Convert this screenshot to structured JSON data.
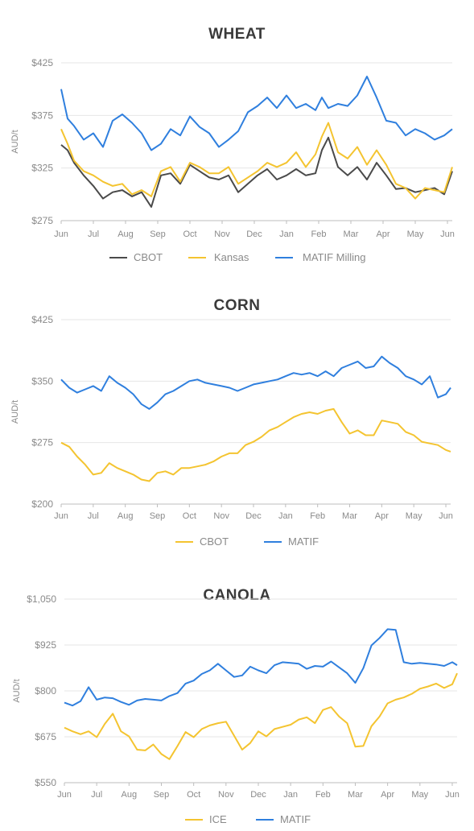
{
  "chart_data": [
    {
      "type": "line",
      "title": "WHEAT",
      "ylabel": "AUD/t",
      "ylim": [
        275,
        425
      ],
      "yticks": [
        275,
        325,
        375,
        425
      ],
      "ytick_labels": [
        "$275",
        "$325",
        "$375",
        "$425"
      ],
      "months": [
        "Jun",
        "Jul",
        "Aug",
        "Sep",
        "Oct",
        "Nov",
        "Dec",
        "Jan",
        "Feb",
        "Mar",
        "Apr",
        "May",
        "Jun"
      ],
      "grid": true,
      "legend": "bottom",
      "series": [
        {
          "name": "CBOT",
          "color": "#4a4a4a",
          "x": [
            0,
            0.2,
            0.4,
            0.7,
            1,
            1.3,
            1.6,
            1.9,
            2.2,
            2.5,
            2.8,
            3.1,
            3.4,
            3.7,
            4,
            4.3,
            4.6,
            4.9,
            5.2,
            5.5,
            5.8,
            6.1,
            6.4,
            6.7,
            7,
            7.3,
            7.6,
            7.9,
            8.1,
            8.3,
            8.6,
            8.9,
            9.2,
            9.5,
            9.8,
            10.1,
            10.4,
            10.7,
            11,
            11.3,
            11.6,
            11.9,
            12.15
          ],
          "values": [
            347,
            342,
            330,
            318,
            308,
            296,
            302,
            304,
            298,
            302,
            288,
            318,
            320,
            310,
            328,
            322,
            316,
            314,
            318,
            302,
            310,
            318,
            324,
            314,
            318,
            324,
            318,
            320,
            342,
            354,
            326,
            318,
            326,
            314,
            330,
            318,
            305,
            306,
            302,
            304,
            306,
            300,
            322
          ]
        },
        {
          "name": "Kansas",
          "color": "#f4c430",
          "x": [
            0,
            0.2,
            0.4,
            0.7,
            1,
            1.3,
            1.6,
            1.9,
            2.2,
            2.5,
            2.8,
            3.1,
            3.4,
            3.7,
            4,
            4.3,
            4.6,
            4.9,
            5.2,
            5.5,
            5.8,
            6.1,
            6.4,
            6.7,
            7,
            7.3,
            7.6,
            7.9,
            8.1,
            8.3,
            8.6,
            8.9,
            9.2,
            9.5,
            9.8,
            10.1,
            10.4,
            10.7,
            11,
            11.3,
            11.6,
            11.9,
            12.15
          ],
          "values": [
            362,
            348,
            332,
            322,
            318,
            312,
            308,
            310,
            300,
            304,
            298,
            322,
            326,
            312,
            330,
            326,
            320,
            320,
            326,
            310,
            316,
            322,
            330,
            326,
            330,
            340,
            326,
            338,
            355,
            368,
            340,
            334,
            345,
            328,
            342,
            328,
            310,
            306,
            296,
            306,
            304,
            302,
            326
          ]
        },
        {
          "name": "MATIF Milling",
          "color": "#2f7fde",
          "x": [
            0,
            0.2,
            0.4,
            0.7,
            1,
            1.3,
            1.6,
            1.9,
            2.2,
            2.5,
            2.8,
            3.1,
            3.4,
            3.7,
            4,
            4.3,
            4.6,
            4.9,
            5.2,
            5.5,
            5.8,
            6.1,
            6.4,
            6.7,
            7,
            7.3,
            7.6,
            7.9,
            8.1,
            8.3,
            8.6,
            8.9,
            9.2,
            9.5,
            9.8,
            10.1,
            10.4,
            10.7,
            11,
            11.3,
            11.6,
            11.9,
            12.15
          ],
          "values": [
            400,
            372,
            365,
            352,
            358,
            345,
            370,
            376,
            368,
            358,
            342,
            348,
            362,
            356,
            374,
            364,
            358,
            345,
            352,
            360,
            378,
            384,
            392,
            382,
            394,
            382,
            386,
            380,
            392,
            382,
            386,
            384,
            394,
            412,
            392,
            370,
            368,
            356,
            362,
            358,
            352,
            356,
            362
          ]
        }
      ]
    },
    {
      "type": "line",
      "title": "CORN",
      "ylabel": "AUD/t",
      "ylim": [
        200,
        425
      ],
      "yticks": [
        200,
        275,
        350,
        425
      ],
      "ytick_labels": [
        "$200",
        "$275",
        "$350",
        "$425"
      ],
      "months": [
        "Jun",
        "Jul",
        "Aug",
        "Sep",
        "Oct",
        "Nov",
        "Dec",
        "Jan",
        "Feb",
        "Mar",
        "Apr",
        "May",
        "Jun"
      ],
      "grid": true,
      "legend": "bottom",
      "series": [
        {
          "name": "CBOT",
          "color": "#f4c430",
          "x": [
            0,
            0.25,
            0.5,
            0.75,
            1,
            1.25,
            1.5,
            1.75,
            2,
            2.25,
            2.5,
            2.75,
            3,
            3.25,
            3.5,
            3.75,
            4,
            4.25,
            4.5,
            4.75,
            5,
            5.25,
            5.5,
            5.75,
            6,
            6.25,
            6.5,
            6.75,
            7,
            7.25,
            7.5,
            7.75,
            8,
            8.25,
            8.5,
            8.75,
            9,
            9.25,
            9.5,
            9.75,
            10,
            10.25,
            10.5,
            10.75,
            11,
            11.25,
            11.5,
            11.75,
            12,
            12.15
          ],
          "values": [
            275,
            270,
            258,
            248,
            236,
            238,
            250,
            244,
            240,
            236,
            230,
            228,
            238,
            240,
            236,
            244,
            244,
            246,
            248,
            252,
            258,
            262,
            262,
            272,
            276,
            282,
            290,
            294,
            300,
            306,
            310,
            312,
            310,
            314,
            316,
            300,
            286,
            290,
            284,
            284,
            302,
            300,
            298,
            288,
            284,
            276,
            274,
            272,
            266,
            264
          ]
        },
        {
          "name": "MATIF",
          "color": "#2f7fde",
          "x": [
            0,
            0.25,
            0.5,
            0.75,
            1,
            1.25,
            1.5,
            1.75,
            2,
            2.25,
            2.5,
            2.75,
            3,
            3.25,
            3.5,
            3.75,
            4,
            4.25,
            4.5,
            4.75,
            5,
            5.25,
            5.5,
            5.75,
            6,
            6.25,
            6.5,
            6.75,
            7,
            7.25,
            7.5,
            7.75,
            8,
            8.25,
            8.5,
            8.75,
            9,
            9.25,
            9.5,
            9.75,
            10,
            10.25,
            10.5,
            10.75,
            11,
            11.25,
            11.5,
            11.75,
            12,
            12.15
          ],
          "values": [
            352,
            342,
            336,
            340,
            344,
            338,
            356,
            348,
            342,
            334,
            322,
            316,
            324,
            334,
            338,
            344,
            350,
            352,
            348,
            346,
            344,
            342,
            338,
            342,
            346,
            348,
            350,
            352,
            356,
            360,
            358,
            360,
            356,
            362,
            356,
            366,
            370,
            374,
            366,
            368,
            380,
            372,
            366,
            356,
            352,
            346,
            356,
            330,
            334,
            342
          ]
        }
      ]
    },
    {
      "type": "line",
      "title": "CANOLA",
      "ylabel": "AUD/t",
      "ylim": [
        550,
        1050
      ],
      "yticks": [
        550,
        675,
        800,
        925,
        1050
      ],
      "ytick_labels": [
        "$550",
        "$675",
        "$800",
        "$925",
        "$1,050"
      ],
      "months": [
        "Jun",
        "Jul",
        "Aug",
        "Sep",
        "Oct",
        "Nov",
        "Dec",
        "Jan",
        "Feb",
        "Mar",
        "Apr",
        "May",
        "Jun"
      ],
      "grid": true,
      "legend": "bottom",
      "series": [
        {
          "name": "ICE",
          "color": "#f4c430",
          "x": [
            0,
            0.25,
            0.5,
            0.75,
            1,
            1.25,
            1.5,
            1.75,
            2,
            2.25,
            2.5,
            2.75,
            3,
            3.25,
            3.5,
            3.75,
            4,
            4.25,
            4.5,
            4.75,
            5,
            5.25,
            5.5,
            5.75,
            6,
            6.25,
            6.5,
            6.75,
            7,
            7.25,
            7.5,
            7.75,
            8,
            8.25,
            8.5,
            8.75,
            9,
            9.25,
            9.5,
            9.75,
            10,
            10.25,
            10.5,
            10.75,
            11,
            11.25,
            11.5,
            11.75,
            12,
            12.15
          ],
          "values": [
            700,
            690,
            682,
            690,
            674,
            710,
            738,
            690,
            676,
            640,
            638,
            654,
            628,
            614,
            650,
            688,
            674,
            696,
            706,
            712,
            716,
            678,
            640,
            658,
            690,
            676,
            696,
            702,
            708,
            722,
            728,
            712,
            748,
            756,
            730,
            712,
            648,
            650,
            704,
            730,
            766,
            776,
            782,
            792,
            806,
            812,
            820,
            808,
            818,
            848
          ]
        },
        {
          "name": "MATIF",
          "color": "#2f7fde",
          "x": [
            0,
            0.25,
            0.5,
            0.75,
            1,
            1.25,
            1.5,
            1.75,
            2,
            2.25,
            2.5,
            2.75,
            3,
            3.25,
            3.5,
            3.75,
            4,
            4.25,
            4.5,
            4.75,
            5,
            5.25,
            5.5,
            5.75,
            6,
            6.25,
            6.5,
            6.75,
            7,
            7.25,
            7.5,
            7.75,
            8,
            8.25,
            8.5,
            8.75,
            9,
            9.25,
            9.5,
            9.75,
            10,
            10.25,
            10.5,
            10.75,
            11,
            11.25,
            11.5,
            11.75,
            12,
            12.15
          ],
          "values": [
            768,
            760,
            772,
            810,
            776,
            782,
            780,
            770,
            762,
            774,
            778,
            776,
            774,
            786,
            794,
            820,
            828,
            846,
            856,
            874,
            856,
            838,
            842,
            866,
            856,
            848,
            870,
            878,
            876,
            874,
            860,
            868,
            866,
            880,
            864,
            848,
            822,
            862,
            924,
            944,
            968,
            966,
            878,
            874,
            876,
            874,
            872,
            868,
            878,
            870
          ]
        }
      ]
    }
  ]
}
